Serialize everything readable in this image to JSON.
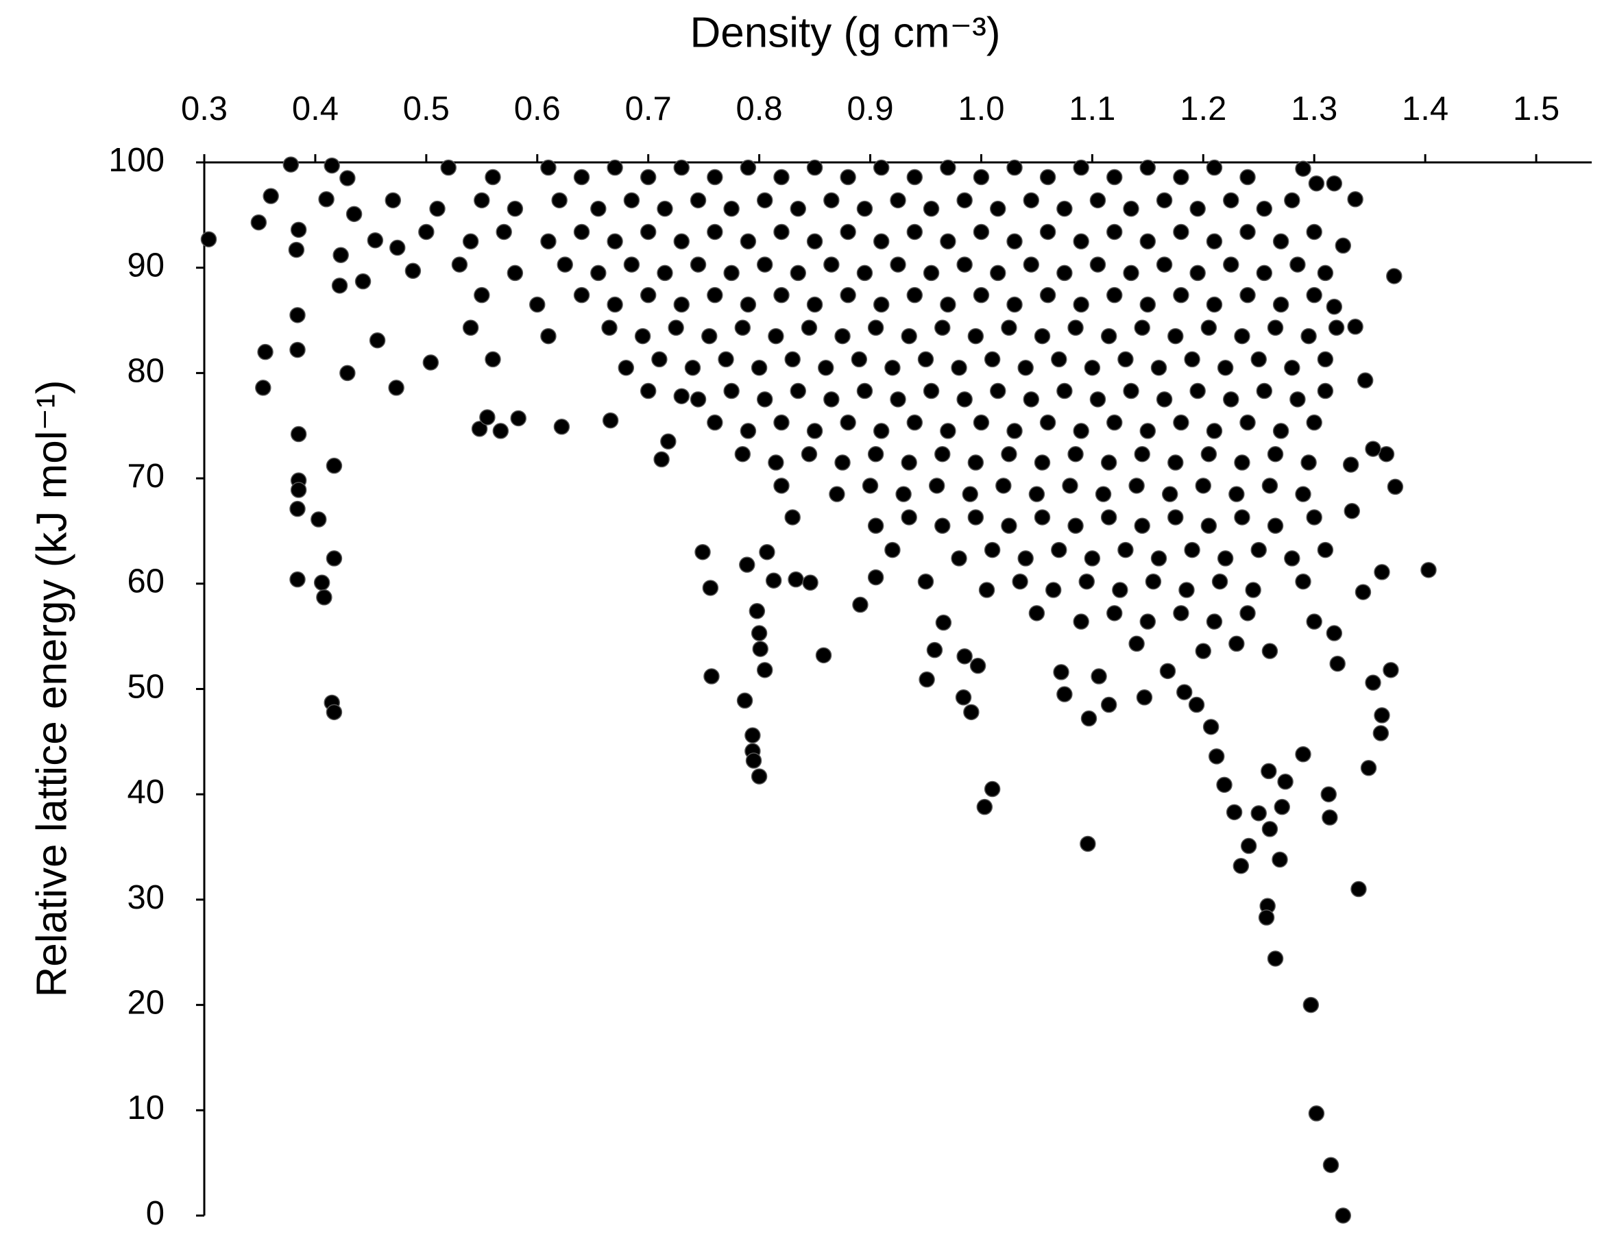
{
  "chart_data": {
    "type": "scatter",
    "x_label": "Density (g cm⁻³)",
    "y_label": "Relative lattice energy (kJ mol⁻¹)",
    "color": "#000000",
    "xlim": [
      0.3,
      1.55
    ],
    "ylim": [
      0,
      100
    ],
    "xticks": [
      0.3,
      0.4,
      0.5,
      0.6,
      0.7,
      0.8,
      0.9,
      {
        "value": 1,
        "label": "1.0"
      },
      1.1,
      1.2,
      1.3,
      1.4,
      1.5
    ],
    "yticks": [
      0,
      10,
      20,
      30,
      40,
      50,
      60,
      70,
      80,
      90,
      100
    ],
    "x": [
      0.304,
      0.349,
      0.36,
      0.353,
      0.355,
      0.378,
      0.385,
      0.383,
      0.384,
      0.384,
      0.385,
      0.385,
      0.385,
      0.384,
      0.384,
      0.403,
      0.406,
      0.408,
      0.417,
      0.417,
      0.415,
      0.417,
      0.415,
      0.41,
      0.429,
      0.435,
      0.423,
      0.422,
      0.429,
      0.443,
      0.456,
      0.454,
      0.473,
      0.474,
      0.488,
      0.504,
      0.548,
      0.555,
      0.567,
      0.583,
      0.622,
      0.666,
      0.712,
      0.718,
      0.73,
      0.749,
      0.756,
      0.757,
      0.789,
      0.807,
      0.813,
      0.787,
      0.794,
      0.794,
      0.795,
      0.8,
      0.798,
      0.8,
      0.801,
      0.805,
      0.833,
      0.846,
      0.858,
      0.891,
      0.905,
      0.951,
      0.958,
      0.966,
      0.985,
      0.997,
      0.984,
      0.991,
      1.01,
      1.003,
      1.096,
      1.097,
      1.106,
      1.115,
      1.072,
      1.075,
      1.147,
      1.168,
      1.183,
      1.194,
      1.207,
      1.212,
      1.219,
      1.228,
      1.234,
      1.241,
      1.25,
      1.259,
      1.26,
      1.258,
      1.257,
      1.265,
      1.269,
      1.271,
      1.274,
      1.29,
      1.297,
      1.302,
      1.315,
      1.326,
      1.313,
      1.314,
      1.34,
      1.349,
      1.36,
      1.361,
      1.353,
      1.369,
      1.403,
      1.373,
      1.372,
      1.365,
      1.353,
      1.361,
      1.344,
      1.334,
      1.337,
      1.318,
      1.326,
      1.337,
      1.346,
      1.318,
      1.302,
      1.29,
      1.333,
      1.321,
      1.318,
      0.52,
      0.56,
      0.61,
      0.64,
      0.67,
      0.7,
      0.73,
      0.76,
      0.79,
      0.82,
      0.85,
      0.88,
      0.91,
      0.94,
      0.97,
      1.0,
      1.03,
      1.06,
      1.09,
      1.12,
      1.15,
      1.18,
      1.21,
      1.24,
      0.47,
      0.51,
      0.55,
      0.58,
      0.62,
      0.655,
      0.685,
      0.715,
      0.745,
      0.775,
      0.805,
      0.835,
      0.865,
      0.895,
      0.925,
      0.955,
      0.985,
      1.015,
      1.045,
      1.075,
      1.105,
      1.135,
      1.165,
      1.195,
      1.225,
      1.255,
      1.28,
      0.5,
      0.54,
      0.57,
      0.61,
      0.64,
      0.67,
      0.7,
      0.73,
      0.76,
      0.79,
      0.82,
      0.85,
      0.88,
      0.91,
      0.94,
      0.97,
      1.0,
      1.03,
      1.06,
      1.09,
      1.12,
      1.15,
      1.18,
      1.21,
      1.24,
      1.27,
      1.3,
      0.53,
      0.58,
      0.625,
      0.655,
      0.685,
      0.715,
      0.745,
      0.775,
      0.805,
      0.835,
      0.865,
      0.895,
      0.925,
      0.955,
      0.985,
      1.015,
      1.045,
      1.075,
      1.105,
      1.135,
      1.165,
      1.195,
      1.225,
      1.255,
      1.285,
      1.31,
      0.55,
      0.6,
      0.64,
      0.67,
      0.7,
      0.73,
      0.76,
      0.79,
      0.82,
      0.85,
      0.88,
      0.91,
      0.94,
      0.97,
      1.0,
      1.03,
      1.06,
      1.09,
      1.12,
      1.15,
      1.18,
      1.21,
      1.24,
      1.27,
      1.3,
      0.54,
      0.61,
      0.665,
      0.695,
      0.725,
      0.755,
      0.785,
      0.815,
      0.845,
      0.875,
      0.905,
      0.935,
      0.965,
      0.995,
      1.025,
      1.055,
      1.085,
      1.115,
      1.145,
      1.175,
      1.205,
      1.235,
      1.265,
      1.295,
      1.32,
      0.56,
      0.68,
      0.71,
      0.74,
      0.77,
      0.8,
      0.83,
      0.86,
      0.89,
      0.92,
      0.95,
      0.98,
      1.01,
      1.04,
      1.07,
      1.1,
      1.13,
      1.16,
      1.19,
      1.22,
      1.25,
      1.28,
      1.31,
      0.7,
      0.745,
      0.775,
      0.805,
      0.835,
      0.865,
      0.895,
      0.925,
      0.955,
      0.985,
      1.015,
      1.045,
      1.075,
      1.105,
      1.135,
      1.165,
      1.195,
      1.225,
      1.255,
      1.285,
      1.31,
      0.76,
      0.79,
      0.82,
      0.85,
      0.88,
      0.91,
      0.94,
      0.97,
      1.0,
      1.03,
      1.06,
      1.09,
      1.12,
      1.15,
      1.18,
      1.21,
      1.24,
      1.27,
      1.3,
      0.785,
      0.815,
      0.845,
      0.875,
      0.905,
      0.935,
      0.965,
      0.995,
      1.025,
      1.055,
      1.085,
      1.115,
      1.145,
      1.175,
      1.205,
      1.235,
      1.265,
      1.295,
      0.82,
      0.87,
      0.9,
      0.93,
      0.96,
      0.99,
      1.02,
      1.05,
      1.08,
      1.11,
      1.14,
      1.17,
      1.2,
      1.23,
      1.26,
      1.29,
      0.83,
      0.905,
      0.935,
      0.965,
      0.995,
      1.025,
      1.055,
      1.085,
      1.115,
      1.145,
      1.175,
      1.205,
      1.235,
      1.265,
      1.3,
      0.92,
      0.98,
      1.01,
      1.04,
      1.07,
      1.1,
      1.13,
      1.16,
      1.19,
      1.22,
      1.25,
      1.28,
      1.31,
      0.95,
      1.005,
      1.035,
      1.065,
      1.095,
      1.125,
      1.155,
      1.185,
      1.215,
      1.245,
      1.29,
      1.05,
      1.09,
      1.12,
      1.15,
      1.18,
      1.21,
      1.24,
      1.3,
      1.14,
      1.2,
      1.23,
      1.26
    ],
    "values": [
      92.7,
      94.3,
      96.8,
      78.6,
      82,
      99.8,
      93.6,
      91.7,
      85.5,
      82.2,
      74.2,
      69.8,
      68.9,
      67.1,
      60.4,
      66.1,
      60.1,
      58.7,
      71.2,
      62.4,
      48.7,
      47.8,
      99.7,
      96.5,
      98.5,
      95.1,
      91.2,
      88.3,
      80,
      88.7,
      83.1,
      92.6,
      78.6,
      91.9,
      89.7,
      81,
      74.7,
      75.8,
      74.5,
      75.7,
      74.9,
      75.5,
      71.8,
      73.5,
      77.8,
      63,
      59.6,
      51.2,
      61.8,
      63,
      60.3,
      48.9,
      45.6,
      44.1,
      43.2,
      41.7,
      57.4,
      55.3,
      53.8,
      51.8,
      60.4,
      60.1,
      53.2,
      58,
      60.6,
      50.9,
      53.7,
      56.3,
      53.1,
      52.2,
      49.2,
      47.8,
      40.5,
      38.8,
      35.3,
      47.2,
      51.2,
      48.5,
      51.6,
      49.5,
      49.2,
      51.7,
      49.7,
      48.5,
      46.4,
      43.6,
      40.9,
      38.3,
      33.2,
      35.1,
      38.2,
      42.2,
      36.7,
      29.4,
      28.3,
      24.4,
      33.8,
      38.8,
      41.2,
      43.8,
      20,
      9.7,
      4.8,
      0,
      40,
      37.8,
      31,
      42.5,
      45.8,
      47.5,
      50.6,
      51.8,
      61.3,
      69.2,
      89.2,
      72.3,
      72.8,
      61.1,
      59.2,
      66.9,
      96.5,
      98,
      92.1,
      84.4,
      79.3,
      86.3,
      98,
      99.4,
      71.3,
      52.4,
      55.3,
      99.5,
      98.6,
      99.5,
      98.6,
      99.5,
      98.6,
      99.5,
      98.6,
      99.5,
      98.6,
      99.5,
      98.6,
      99.5,
      98.6,
      99.5,
      98.6,
      99.5,
      98.6,
      99.5,
      98.6,
      99.5,
      98.6,
      99.5,
      98.6,
      96.4,
      95.6,
      96.4,
      95.6,
      96.4,
      95.6,
      96.4,
      95.6,
      96.4,
      95.6,
      96.4,
      95.6,
      96.4,
      95.6,
      96.4,
      95.6,
      96.4,
      95.6,
      96.4,
      95.6,
      96.4,
      95.6,
      96.4,
      95.6,
      96.4,
      95.6,
      96.4,
      93.4,
      92.5,
      93.4,
      92.5,
      93.4,
      92.5,
      93.4,
      92.5,
      93.4,
      92.5,
      93.4,
      92.5,
      93.4,
      92.5,
      93.4,
      92.5,
      93.4,
      92.5,
      93.4,
      92.5,
      93.4,
      92.5,
      93.4,
      92.5,
      93.4,
      92.5,
      93.4,
      90.3,
      89.5,
      90.3,
      89.5,
      90.3,
      89.5,
      90.3,
      89.5,
      90.3,
      89.5,
      90.3,
      89.5,
      90.3,
      89.5,
      90.3,
      89.5,
      90.3,
      89.5,
      90.3,
      89.5,
      90.3,
      89.5,
      90.3,
      89.5,
      90.3,
      89.5,
      87.4,
      86.5,
      87.4,
      86.5,
      87.4,
      86.5,
      87.4,
      86.5,
      87.4,
      86.5,
      87.4,
      86.5,
      87.4,
      86.5,
      87.4,
      86.5,
      87.4,
      86.5,
      87.4,
      86.5,
      87.4,
      86.5,
      87.4,
      86.5,
      87.4,
      84.3,
      83.5,
      84.3,
      83.5,
      84.3,
      83.5,
      84.3,
      83.5,
      84.3,
      83.5,
      84.3,
      83.5,
      84.3,
      83.5,
      84.3,
      83.5,
      84.3,
      83.5,
      84.3,
      83.5,
      84.3,
      83.5,
      84.3,
      83.5,
      84.3,
      81.3,
      80.5,
      81.3,
      80.5,
      81.3,
      80.5,
      81.3,
      80.5,
      81.3,
      80.5,
      81.3,
      80.5,
      81.3,
      80.5,
      81.3,
      80.5,
      81.3,
      80.5,
      81.3,
      80.5,
      81.3,
      80.5,
      81.3,
      78.3,
      77.5,
      78.3,
      77.5,
      78.3,
      77.5,
      78.3,
      77.5,
      78.3,
      77.5,
      78.3,
      77.5,
      78.3,
      77.5,
      78.3,
      77.5,
      78.3,
      77.5,
      78.3,
      77.5,
      78.3,
      75.3,
      74.5,
      75.3,
      74.5,
      75.3,
      74.5,
      75.3,
      74.5,
      75.3,
      74.5,
      75.3,
      74.5,
      75.3,
      74.5,
      75.3,
      74.5,
      75.3,
      74.5,
      75.3,
      72.3,
      71.5,
      72.3,
      71.5,
      72.3,
      71.5,
      72.3,
      71.5,
      72.3,
      71.5,
      72.3,
      71.5,
      72.3,
      71.5,
      72.3,
      71.5,
      72.3,
      71.5,
      69.3,
      68.5,
      69.3,
      68.5,
      69.3,
      68.5,
      69.3,
      68.5,
      69.3,
      68.5,
      69.3,
      68.5,
      69.3,
      68.5,
      69.3,
      68.5,
      66.3,
      65.5,
      66.3,
      65.5,
      66.3,
      65.5,
      66.3,
      65.5,
      66.3,
      65.5,
      66.3,
      65.5,
      66.3,
      65.5,
      66.3,
      63.2,
      62.4,
      63.2,
      62.4,
      63.2,
      62.4,
      63.2,
      62.4,
      63.2,
      62.4,
      63.2,
      62.4,
      63.2,
      60.2,
      59.4,
      60.2,
      59.4,
      60.2,
      59.4,
      60.2,
      59.4,
      60.2,
      59.4,
      60.2,
      57.2,
      56.4,
      57.2,
      56.4,
      57.2,
      56.4,
      57.2,
      56.4,
      54.3,
      53.6,
      54.3,
      53.6
    ]
  }
}
